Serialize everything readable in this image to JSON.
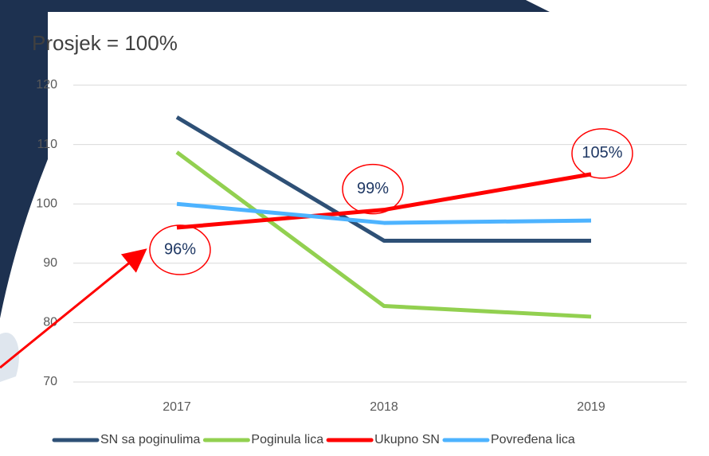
{
  "chart_data": {
    "type": "line",
    "title": "Prosjek = 100%",
    "categories": [
      "2017",
      "2018",
      "2019"
    ],
    "series": [
      {
        "name": "SN sa poginulima",
        "color": "#2e5076",
        "values": [
          114.6,
          93.8,
          93.8
        ]
      },
      {
        "name": "Poginula lica",
        "color": "#92d050",
        "values": [
          108.7,
          82.8,
          81.0
        ]
      },
      {
        "name": "Ukupno SN",
        "color": "#ff0000",
        "values": [
          96,
          99,
          105
        ],
        "value_labels": [
          "96%",
          "99%",
          "105%"
        ]
      },
      {
        "name": "Povređena lica",
        "color": "#4db3ff",
        "values": [
          100,
          96.8,
          97.2
        ]
      }
    ],
    "ylim": [
      70,
      120
    ],
    "yticks": [
      70,
      80,
      90,
      100,
      110,
      120
    ],
    "grid": true,
    "legend": "bottom"
  }
}
